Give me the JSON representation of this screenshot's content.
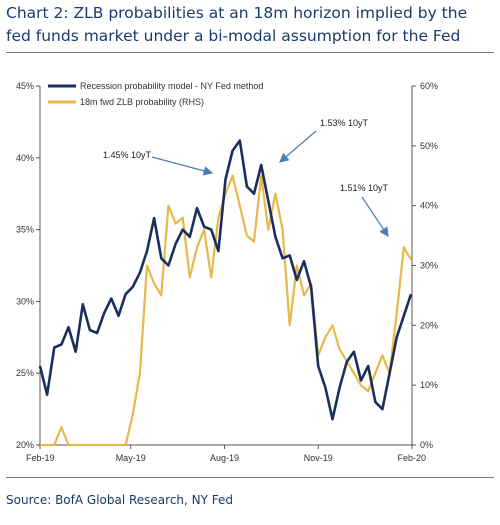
{
  "title": "Chart 2: ZLB probabilities at an 18m horizon implied by the fed funds market under a bi-modal assumption for the Fed",
  "source": "Source: BofA Global Research, NY Fed",
  "colors": {
    "recession": "#1b2f5e",
    "zlb": "#e8b84a",
    "title": "#1a3a6b"
  },
  "chart_data": {
    "type": "line",
    "x_ticks": [
      "Feb-19",
      "May-19",
      "Aug-19",
      "Nov-19",
      "Feb-20"
    ],
    "x_range": [
      "2019-02-01",
      "2020-02-01"
    ],
    "left_axis": {
      "ticks": [
        "20%",
        "25%",
        "30%",
        "35%",
        "40%",
        "45%"
      ],
      "range": [
        20,
        45
      ]
    },
    "right_axis": {
      "ticks": [
        "0%",
        "10%",
        "20%",
        "30%",
        "40%",
        "50%",
        "60%"
      ],
      "range": [
        0,
        60
      ]
    },
    "legend_position": "top-left",
    "grid": false,
    "series": [
      {
        "name": "Recession probability model - NY Fed method",
        "axis": "left",
        "color": "#1b2f5e",
        "x": [
          "2019-02-01",
          "2019-02-08",
          "2019-02-15",
          "2019-02-22",
          "2019-03-01",
          "2019-03-08",
          "2019-03-15",
          "2019-03-22",
          "2019-03-29",
          "2019-04-05",
          "2019-04-12",
          "2019-04-19",
          "2019-04-26",
          "2019-05-03",
          "2019-05-10",
          "2019-05-17",
          "2019-05-24",
          "2019-05-31",
          "2019-06-07",
          "2019-06-14",
          "2019-06-21",
          "2019-06-28",
          "2019-07-05",
          "2019-07-12",
          "2019-07-19",
          "2019-07-26",
          "2019-08-02",
          "2019-08-09",
          "2019-08-16",
          "2019-08-23",
          "2019-08-30",
          "2019-09-06",
          "2019-09-13",
          "2019-09-20",
          "2019-09-27",
          "2019-10-04",
          "2019-10-11",
          "2019-10-18",
          "2019-10-25",
          "2019-11-01",
          "2019-11-08",
          "2019-11-15",
          "2019-11-22",
          "2019-11-29",
          "2019-12-06",
          "2019-12-13",
          "2019-12-20",
          "2019-12-27",
          "2020-01-03",
          "2020-01-10",
          "2020-01-17",
          "2020-01-24",
          "2020-01-31"
        ],
        "y": [
          25.5,
          23.5,
          26.8,
          27.0,
          28.2,
          26.5,
          29.8,
          28.0,
          27.8,
          29.2,
          30.2,
          29.0,
          30.5,
          31.0,
          32.0,
          33.5,
          35.8,
          33.0,
          32.5,
          34.0,
          35.0,
          34.5,
          36.5,
          35.2,
          35.0,
          33.5,
          38.5,
          40.5,
          41.2,
          38.0,
          37.5,
          39.5,
          37.0,
          34.5,
          33.0,
          33.2,
          31.5,
          32.8,
          31.0,
          25.5,
          24.0,
          21.8,
          24.0,
          25.8,
          26.5,
          24.5,
          25.5,
          23.0,
          22.5,
          25.0,
          27.5,
          29.0,
          30.5
        ]
      },
      {
        "name": "18m fwd ZLB probability (RHS)",
        "axis": "right",
        "color": "#e8b84a",
        "x": [
          "2019-02-01",
          "2019-02-08",
          "2019-02-15",
          "2019-02-22",
          "2019-03-01",
          "2019-03-08",
          "2019-03-15",
          "2019-03-22",
          "2019-03-29",
          "2019-04-05",
          "2019-04-12",
          "2019-04-19",
          "2019-04-26",
          "2019-05-03",
          "2019-05-10",
          "2019-05-17",
          "2019-05-24",
          "2019-05-31",
          "2019-06-07",
          "2019-06-14",
          "2019-06-21",
          "2019-06-28",
          "2019-07-05",
          "2019-07-12",
          "2019-07-19",
          "2019-07-26",
          "2019-08-02",
          "2019-08-09",
          "2019-08-16",
          "2019-08-23",
          "2019-08-30",
          "2019-09-06",
          "2019-09-13",
          "2019-09-20",
          "2019-09-27",
          "2019-10-04",
          "2019-10-11",
          "2019-10-18",
          "2019-10-25",
          "2019-11-01",
          "2019-11-08",
          "2019-11-15",
          "2019-11-22",
          "2019-11-29",
          "2019-12-06",
          "2019-12-13",
          "2019-12-20",
          "2019-12-27",
          "2020-01-03",
          "2020-01-10",
          "2020-01-17",
          "2020-01-24",
          "2020-01-31"
        ],
        "y": [
          0,
          0,
          0,
          3,
          0,
          0,
          0,
          0,
          0,
          0,
          0,
          0,
          0,
          5,
          12,
          30,
          27,
          25,
          40,
          37,
          38,
          28,
          33,
          36,
          28,
          38,
          42,
          45,
          40,
          35,
          34,
          45,
          36,
          42,
          36,
          20,
          30,
          25,
          27,
          15,
          18,
          20,
          16,
          14,
          12,
          10,
          9,
          12,
          15,
          12,
          22,
          33,
          31
        ]
      }
    ],
    "annotations": [
      {
        "text": "1.45% 10yT",
        "x": "2019-08-05",
        "y": 45.5
      },
      {
        "text": "1.53% 10yT",
        "x": "2019-09-06",
        "y": 48.0
      },
      {
        "text": "1.51% 10yT",
        "x": "2020-01-17",
        "y": 33.0
      }
    ]
  }
}
